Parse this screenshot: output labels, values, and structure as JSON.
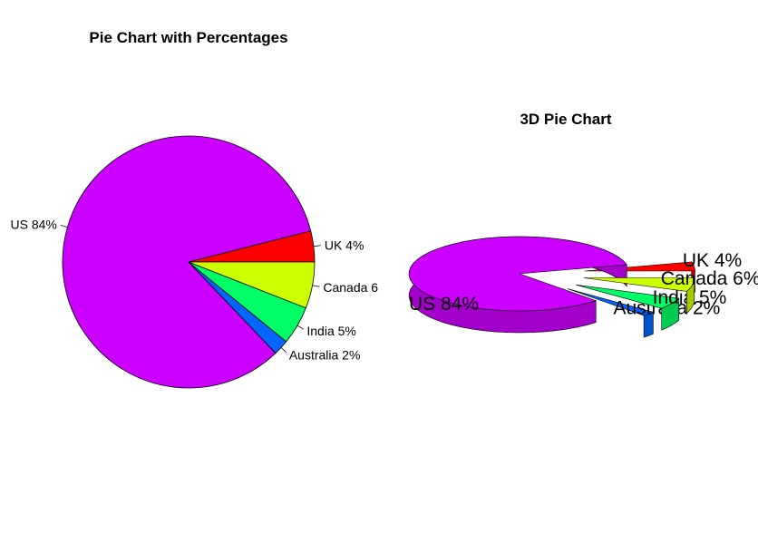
{
  "chart_data": [
    {
      "type": "pie",
      "title": "Pie Chart with Percentages",
      "categories": [
        "UK",
        "US",
        "Australia",
        "India",
        "Canada"
      ],
      "values": [
        4,
        84,
        2,
        5,
        6
      ],
      "labels": [
        "UK 4%",
        "US 84%",
        "Australia 2%",
        "India 5%",
        "Canada 6"
      ],
      "colors": [
        "#FF0000",
        "#CC00FF",
        "#0066FF",
        "#00FF66",
        "#CCFF00"
      ],
      "legend": "none"
    },
    {
      "type": "pie",
      "title": "3D Pie Chart",
      "categories": [
        "UK",
        "US",
        "Australia",
        "India",
        "Canada"
      ],
      "values": [
        4,
        84,
        2,
        5,
        6
      ],
      "labels": [
        "UK 4%",
        "US 84%",
        "Australia 2%",
        "India 5%",
        "Canada 6%"
      ],
      "colors": [
        "#FF0000",
        "#CC00FF",
        "#0066FF",
        "#00FF66",
        "#CCFF00"
      ],
      "exploded": true,
      "legend": "none"
    }
  ]
}
